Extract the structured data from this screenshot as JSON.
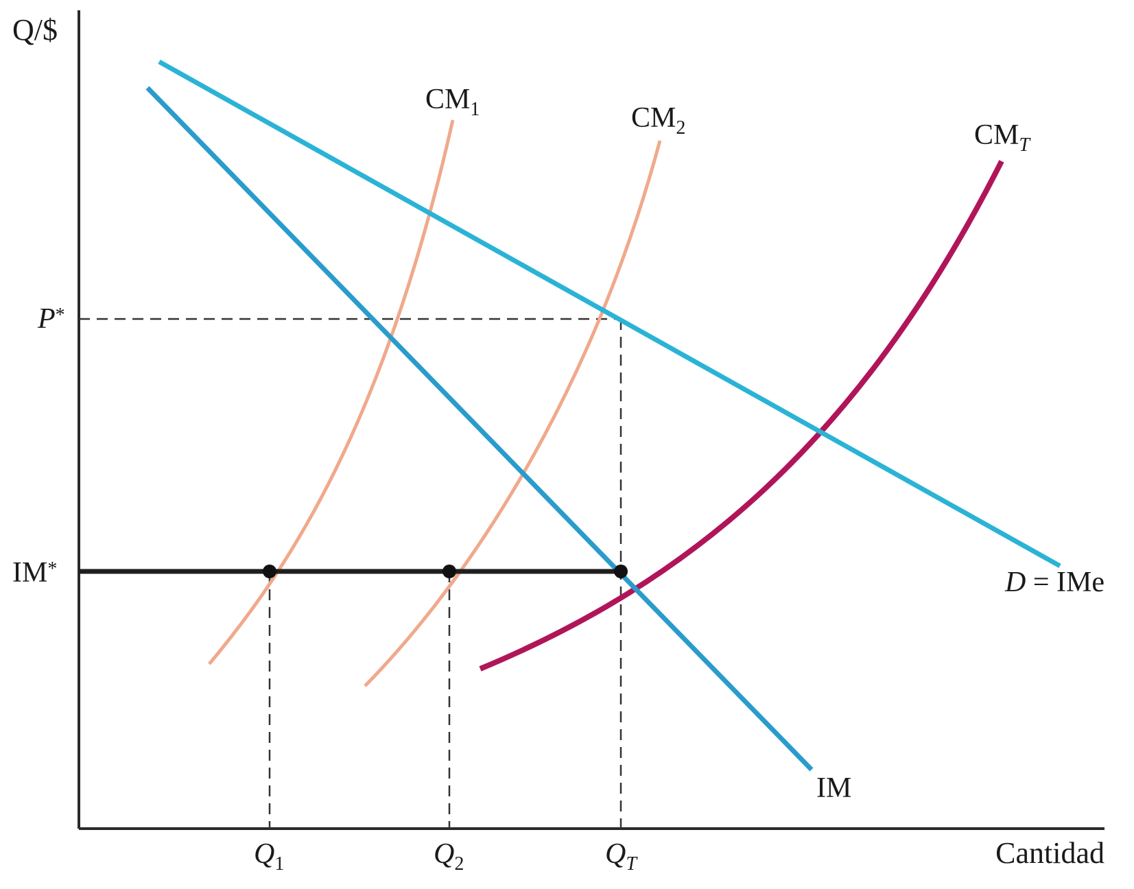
{
  "colors": {
    "axis": "#2a2a2a",
    "demand": "#2bb3d6",
    "marginal_revenue": "#2a9ccc",
    "cm_plants": "#f0a98c",
    "cm_total": "#b0155a",
    "im_star_line": "#1f1f1f",
    "guides": "#333333",
    "points": "#111111"
  },
  "axes": {
    "y_label": "Q/$",
    "x_label": "Cantidad"
  },
  "price_levels": {
    "p_star": {
      "main": "P",
      "suffix": "*"
    },
    "im_star": {
      "main": "IM",
      "suffix": "*"
    }
  },
  "quantities": [
    {
      "main": "Q",
      "sub": "1"
    },
    {
      "main": "Q",
      "sub": "2"
    },
    {
      "main": "Q",
      "sub": "T"
    }
  ],
  "curves": {
    "cm1": {
      "main": "CM",
      "sub": "1"
    },
    "cm2": {
      "main": "CM",
      "sub": "2"
    },
    "cmt": {
      "main": "CM",
      "sub": "T"
    },
    "demand": {
      "d": "D",
      "rest": " = IMe"
    },
    "im": {
      "main": "IM"
    }
  },
  "points": [
    {
      "name": "Q1-at-IM*"
    },
    {
      "name": "Q2-at-IM*"
    },
    {
      "name": "QT-at-IM*"
    }
  ]
}
